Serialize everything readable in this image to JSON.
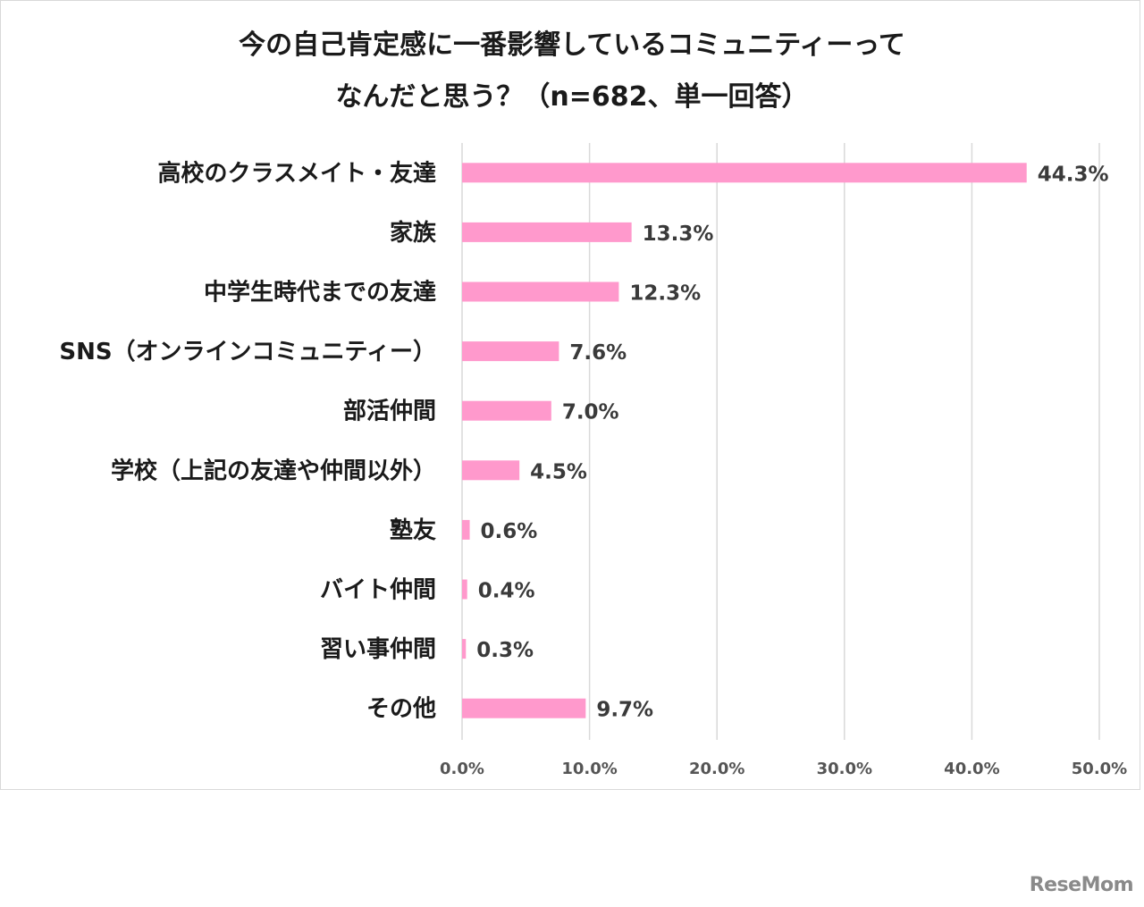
{
  "chart_data": {
    "type": "bar",
    "orientation": "horizontal",
    "title_line1": "今の自己肯定感に一番影響しているコミュニティーって",
    "title_line2": "なんだと思う？（n=682、単一回答）",
    "categories": [
      "高校のクラスメイト・友達",
      "家族",
      "中学生時代までの友達",
      "SNS（オンラインコミュニティー）",
      "部活仲間",
      "学校（上記の友達や仲間以外）",
      "塾友",
      "バイト仲間",
      "習い事仲間",
      "その他"
    ],
    "values": [
      44.3,
      13.3,
      12.3,
      7.6,
      7.0,
      4.5,
      0.6,
      0.4,
      0.3,
      9.7
    ],
    "value_labels": [
      "44.3%",
      "13.3%",
      "12.3%",
      "7.6%",
      "7.0%",
      "4.5%",
      "0.6%",
      "0.4%",
      "0.3%",
      "9.7%"
    ],
    "xlim": [
      0,
      50
    ],
    "xticks": [
      0,
      10,
      20,
      30,
      40,
      50
    ],
    "xtick_labels": [
      "0.0%",
      "10.0%",
      "20.0%",
      "30.0%",
      "40.0%",
      "50.0%"
    ],
    "grid": true,
    "bar_color": "#ff99cc",
    "grid_color": "#d9d9d9"
  },
  "watermark": "ReseMom"
}
